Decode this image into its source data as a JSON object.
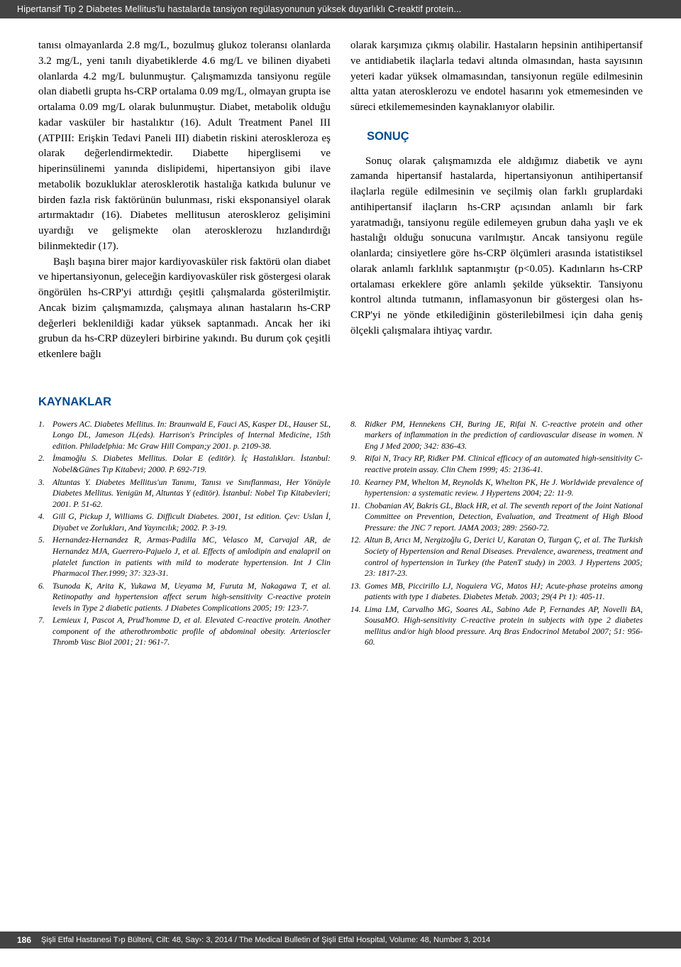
{
  "header": {
    "running_title": "Hipertansif Tip 2 Diabetes Mellitus'lu hastalarda tansiyon regülasyonunun yüksek duyarlıklı C-reaktif protein..."
  },
  "body": {
    "left_p1": "tanısı olmayanlarda 2.8 mg/L, bozulmuş glukoz toleransı olanlarda 3.2 mg/L, yeni tanılı diyabetiklerde 4.6 mg/L ve bilinen diyabeti olanlarda 4.2 mg/L bulunmuştur. Çalışmamızda tansiyonu regüle olan diabetli grupta hs-CRP ortalama 0.09 mg/L, olmayan grupta ise ortalama 0.09 mg/L olarak bulunmuştur. Diabet, metabolik olduğu kadar vasküler bir hastalıktır (16). Adult Treatment Panel III (ATPIII: Erişkin Tedavi Paneli III) diabetin riskini ateroskleroza eş olarak değerlendirmektedir. Diabette hiperglisemi ve hiperinsülinemi yanında dislipidemi, hipertansiyon gibi ilave metabolik bozukluklar aterosklerotik hastalığa katkıda bulunur ve birden fazla risk faktörünün bulunması, riski eksponansiyel olarak artırmaktadır (16). Diabetes mellitusun ateroskleroz gelişimini uyardığı ve gelişmekte olan aterosklerozu hızlandırdığı bilinmektedir (17).",
    "left_p2": "Başlı başına birer major kardiyovasküler risk faktörü olan diabet ve hipertansiyonun, geleceğin kardiyovasküler risk göstergesi olarak öngörülen hs-CRP'yi attırdığı çeşitli çalışmalarda gösterilmiştir. Ancak bizim çalışmamızda, çalışmaya alınan hastaların hs-CRP değerleri beklenildiği kadar yüksek saptanmadı. Ancak her iki grubun da hs-CRP düzeyleri birbirine yakındı. Bu durum çok çeşitli etkenlere bağlı",
    "right_p1": "olarak karşımıza çıkmış olabilir. Hastaların hepsinin antihipertansif ve antidiabetik ilaçlarla tedavi altında olmasından, hasta sayısının yeteri kadar yüksek olmamasından, tansiyonun regüle edilmesinin altta yatan aterosklerozu ve endotel hasarını yok etmemesinden ve süreci etkilememesinden kaynaklanıyor olabilir.",
    "sonuc_title": "SONUÇ",
    "right_p2": "Sonuç olarak çalışmamızda ele aldığımız diabetik ve aynı zamanda hipertansif hastalarda, hipertansiyonun antihipertansif ilaçlarla regüle edilmesinin ve seçilmiş olan farklı gruplardaki antihipertansif ilaçların hs-CRP açısından anlamlı bir fark yaratmadığı, tansiyonu regüle edilemeyen grubun daha yaşlı ve ek hastalığı olduğu sonucuna varılmıştır. Ancak tansiyonu regüle olanlarda; cinsiyetlere göre hs-CRP ölçümleri arasında istatistiksel olarak anlamlı farklılık saptanmıştır (p<0.05). Kadınların hs-CRP ortalaması erkeklere göre anlamlı şekilde yüksektir. Tansiyonu kontrol altında tutmanın, inflamasyonun bir göstergesi olan hs-CRP'yi ne yönde etkilediğinin gösterilebilmesi için daha geniş ölçekli çalışmalara ihtiyaç vardır."
  },
  "references": {
    "title": "KAYNAKLAR",
    "left": [
      {
        "n": "1.",
        "t": "Powers AC. Diabetes Mellitus. In: Braunwald E, Fauci AS, Kasper DL, Hauser SL, Longo DL, Jameson JL(eds). Harrison's Principles of Internal Medicine, 15th edition. Philadelphia: Mc Graw Hill Compan;y 2001. p. 2109-38."
      },
      {
        "n": "2.",
        "t": "İmamoğlu S. Diabetes Mellitus. Dolar E (editör). İç Hastalıkları. İstanbul: Nobel&Günes Tıp Kitabevi; 2000. P. 692-719."
      },
      {
        "n": "3.",
        "t": "Altuntas Y. Diabetes Mellitus'un Tanımı, Tanısı ve Sınıflanması, Her Yönüyle Diabetes Mellitus. Yenigün M, Altuntas Y (editör). İstanbul: Nobel Tıp Kitabevleri; 2001. P. 51-62."
      },
      {
        "n": "4.",
        "t": "Gill G, Pickup J, Williams G. Difficult Diabetes. 2001, 1st edition. Çev: Uslan İ, Diyabet ve Zorlukları, And Yayıncılık; 2002. P. 3-19."
      },
      {
        "n": "5.",
        "t": "Hernandez-Hernandez R, Armas-Padilla MC, Velasco M, Carvajal AR, de Hernandez MJA, Guerrero-Pajuelo J, et al. Effects of amlodipin and enalapril on platelet function in patients with mild to moderate hypertension. Int J Clin Pharmacol Ther.1999; 37: 323-31."
      },
      {
        "n": "6.",
        "t": "Tsunoda K, Arita K, Yukawa M, Ueyama M, Furuta M, Nakagawa T, et al. Retinopathy and hypertension affect serum high-sensitivity C-reactive protein levels in Type 2 diabetic patients. J Diabetes Complications 2005; 19: 123-7."
      },
      {
        "n": "7.",
        "t": "Lemieux I, Pascot A, Prud'homme D, et al. Elevated C-reactive protein. Another component of the atherothrombotic profile of abdominal obesity. Arterioscler Thromb Vasc Biol 2001; 21: 961-7."
      }
    ],
    "right": [
      {
        "n": "8.",
        "t": "Ridker PM, Hennekens CH, Buring JE, Rifai N. C-reactive protein and other markers of inflammation in the prediction of cardiovascular disease in women. N Eng J Med 2000; 342: 836-43."
      },
      {
        "n": "9.",
        "t": "Rifai N, Tracy RP, Ridker PM. Clinical efficacy of an automated high-sensitivity C-reactive protein assay. Clin Chem 1999; 45: 2136-41."
      },
      {
        "n": "10.",
        "t": "Kearney PM, Whelton M, Reynolds K, Whelton PK, He J. Worldwide prevalence of hypertension: a systematic review. J Hypertens 2004; 22: 11-9."
      },
      {
        "n": "11.",
        "t": "Chobanian AV, Bakris GL, Black HR, et al. The seventh report of the Joint National Committee on Prevention, Detection, Evaluation, and Treatment of High Blood Pressure: the JNC 7 report. JAMA 2003; 289: 2560-72."
      },
      {
        "n": "12.",
        "t": "Altun B, Arıcı M, Nergizoğlu G, Derici U, Karatan O, Turgan Ç, et al. The Turkish Society of Hypertension and Renal Diseases. Prevalence, awareness, treatment and control of hypertension in Turkey (the PatenT study) in 2003. J Hypertens 2005; 23: 1817-23."
      },
      {
        "n": "13.",
        "t": "Gomes MB, Piccirillo LJ, Noguiera VG, Matos HJ; Acute-phase proteins among patients with type 1 diabetes. Diabetes Metab. 2003; 29(4 Pt 1): 405-11."
      },
      {
        "n": "14.",
        "t": "Lima LM, Carvalho MG, Soares AL, Sabino Ade P, Fernandes AP, Novelli BA, SousaMO. High-sensitivity C-reactive protein in subjects with type 2 diabetes mellitus and/or high blood pressure. Arq Bras Endocrinol Metabol 2007; 51: 956-60."
      }
    ]
  },
  "footer": {
    "page": "186",
    "citation": "Şişli Etfal Hastanesi T›p Bülteni, Cilt: 48, Say›: 3, 2014 / The Medical Bulletin of Şişli Etfal Hospital, Volume: 48, Number 3, 2014"
  },
  "colors": {
    "band_bg": "#444444",
    "band_fg": "#ffffff",
    "heading": "#004a8d",
    "text": "#000000",
    "page_bg": "#ffffff"
  }
}
